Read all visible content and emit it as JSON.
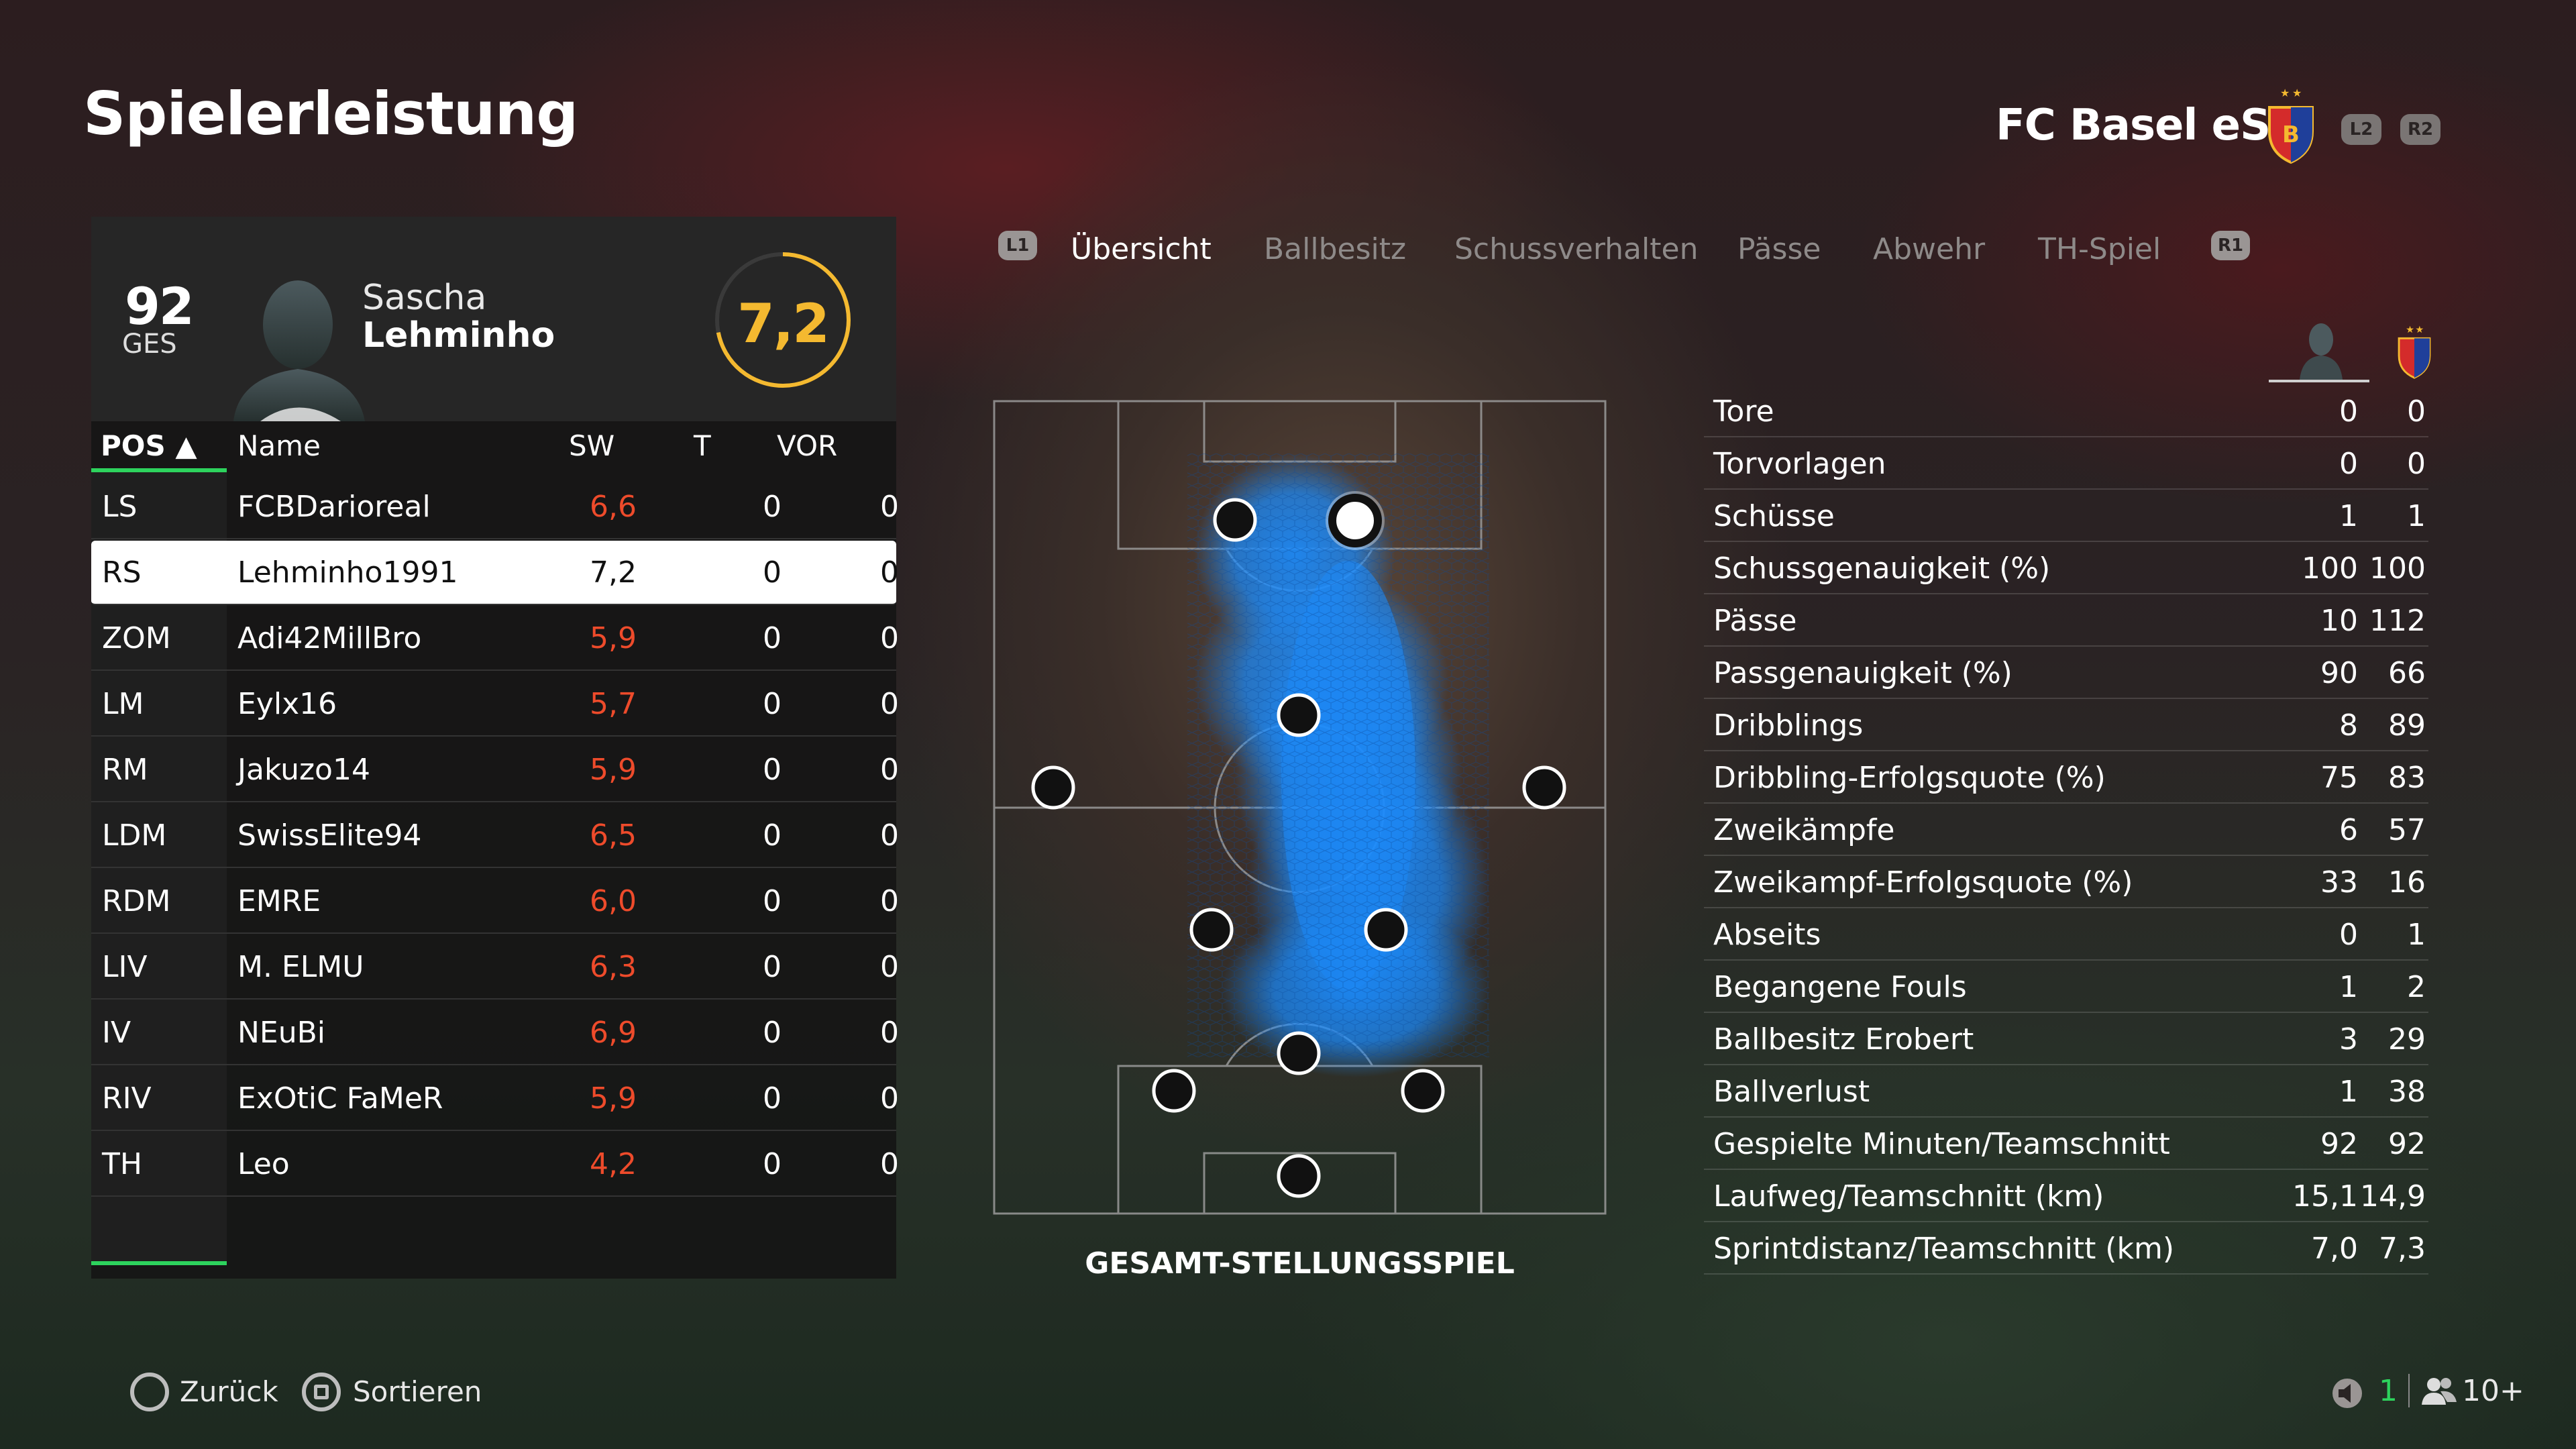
{
  "header": {
    "title": "Spielerleistung",
    "team_name": "FC Basel eSp",
    "l2": "L2",
    "r2": "R2"
  },
  "player": {
    "overall": "92",
    "overall_label": "GES",
    "first_name": "Sascha",
    "last_name": "Lehminho",
    "rating": "7,2"
  },
  "table": {
    "headers": {
      "pos": "POS ▲",
      "name": "Name",
      "sw": "SW",
      "t": "T",
      "vor": "VOR"
    },
    "rows": [
      {
        "pos": "LS",
        "name": "FCBDarioreal",
        "sw": "6,6",
        "t": "0",
        "vor": "0"
      },
      {
        "pos": "RS",
        "name": "Lehminho1991",
        "sw": "7,2",
        "t": "0",
        "vor": "0"
      },
      {
        "pos": "ZOM",
        "name": "Adi42MillBro",
        "sw": "5,9",
        "t": "0",
        "vor": "0"
      },
      {
        "pos": "LM",
        "name": "Eylx16",
        "sw": "5,7",
        "t": "0",
        "vor": "0"
      },
      {
        "pos": "RM",
        "name": "Jakuzo14",
        "sw": "5,9",
        "t": "0",
        "vor": "0"
      },
      {
        "pos": "LDM",
        "name": "SwissElite94",
        "sw": "6,5",
        "t": "0",
        "vor": "0"
      },
      {
        "pos": "RDM",
        "name": "EMRE",
        "sw": "6,0",
        "t": "0",
        "vor": "0"
      },
      {
        "pos": "LIV",
        "name": "M. ELMU",
        "sw": "6,3",
        "t": "0",
        "vor": "0"
      },
      {
        "pos": "IV",
        "name": "NEuBi",
        "sw": "6,9",
        "t": "0",
        "vor": "0"
      },
      {
        "pos": "RIV",
        "name": "ExOtiC FaMeR",
        "sw": "5,9",
        "t": "0",
        "vor": "0"
      },
      {
        "pos": "TH",
        "name": "Leo",
        "sw": "4,2",
        "t": "0",
        "vor": "0"
      }
    ]
  },
  "tabs": {
    "l1": "L1",
    "r1": "R1",
    "items": [
      "Übersicht",
      "Ballbesitz",
      "Schussverhalten",
      "Pässe",
      "Abwehr",
      "TH-Spiel"
    ]
  },
  "pitch": {
    "title": "GESAMT-STELLUNGSSPIEL"
  },
  "stats": [
    {
      "label": "Tore",
      "player": "0",
      "team": "0"
    },
    {
      "label": "Torvorlagen",
      "player": "0",
      "team": "0"
    },
    {
      "label": "Schüsse",
      "player": "1",
      "team": "1"
    },
    {
      "label": "Schussgenauigkeit (%)",
      "player": "100",
      "team": "100"
    },
    {
      "label": "Pässe",
      "player": "10",
      "team": "112"
    },
    {
      "label": "Passgenauigkeit (%)",
      "player": "90",
      "team": "66"
    },
    {
      "label": "Dribblings",
      "player": "8",
      "team": "89"
    },
    {
      "label": "Dribbling-Erfolgsquote (%)",
      "player": "75",
      "team": "83"
    },
    {
      "label": "Zweikämpfe",
      "player": "6",
      "team": "57"
    },
    {
      "label": "Zweikampf-Erfolgsquote (%)",
      "player": "33",
      "team": "16"
    },
    {
      "label": "Abseits",
      "player": "0",
      "team": "1"
    },
    {
      "label": "Begangene Fouls",
      "player": "1",
      "team": "2"
    },
    {
      "label": "Ballbesitz Erobert",
      "player": "3",
      "team": "29"
    },
    {
      "label": "Ballverlust",
      "player": "1",
      "team": "38"
    },
    {
      "label": "Gespielte Minuten/Teamschnitt",
      "player": "92",
      "team": "92"
    },
    {
      "label": "Laufweg/Teamschnitt (km)",
      "player": "15,1",
      "team": "14,9"
    },
    {
      "label": "Sprintdistanz/Teamschnitt (km)",
      "player": "7,0",
      "team": "7,3"
    }
  ],
  "bottom": {
    "back": "Zurück",
    "sort": "Sortieren",
    "voice_count": "1",
    "players": "10+"
  },
  "colors": {
    "accent_green": "#2dd35d",
    "rating_yellow": "#f4b930",
    "low_rating_red": "#ee4b2b",
    "heatmap_blue": "#1a8cff"
  }
}
